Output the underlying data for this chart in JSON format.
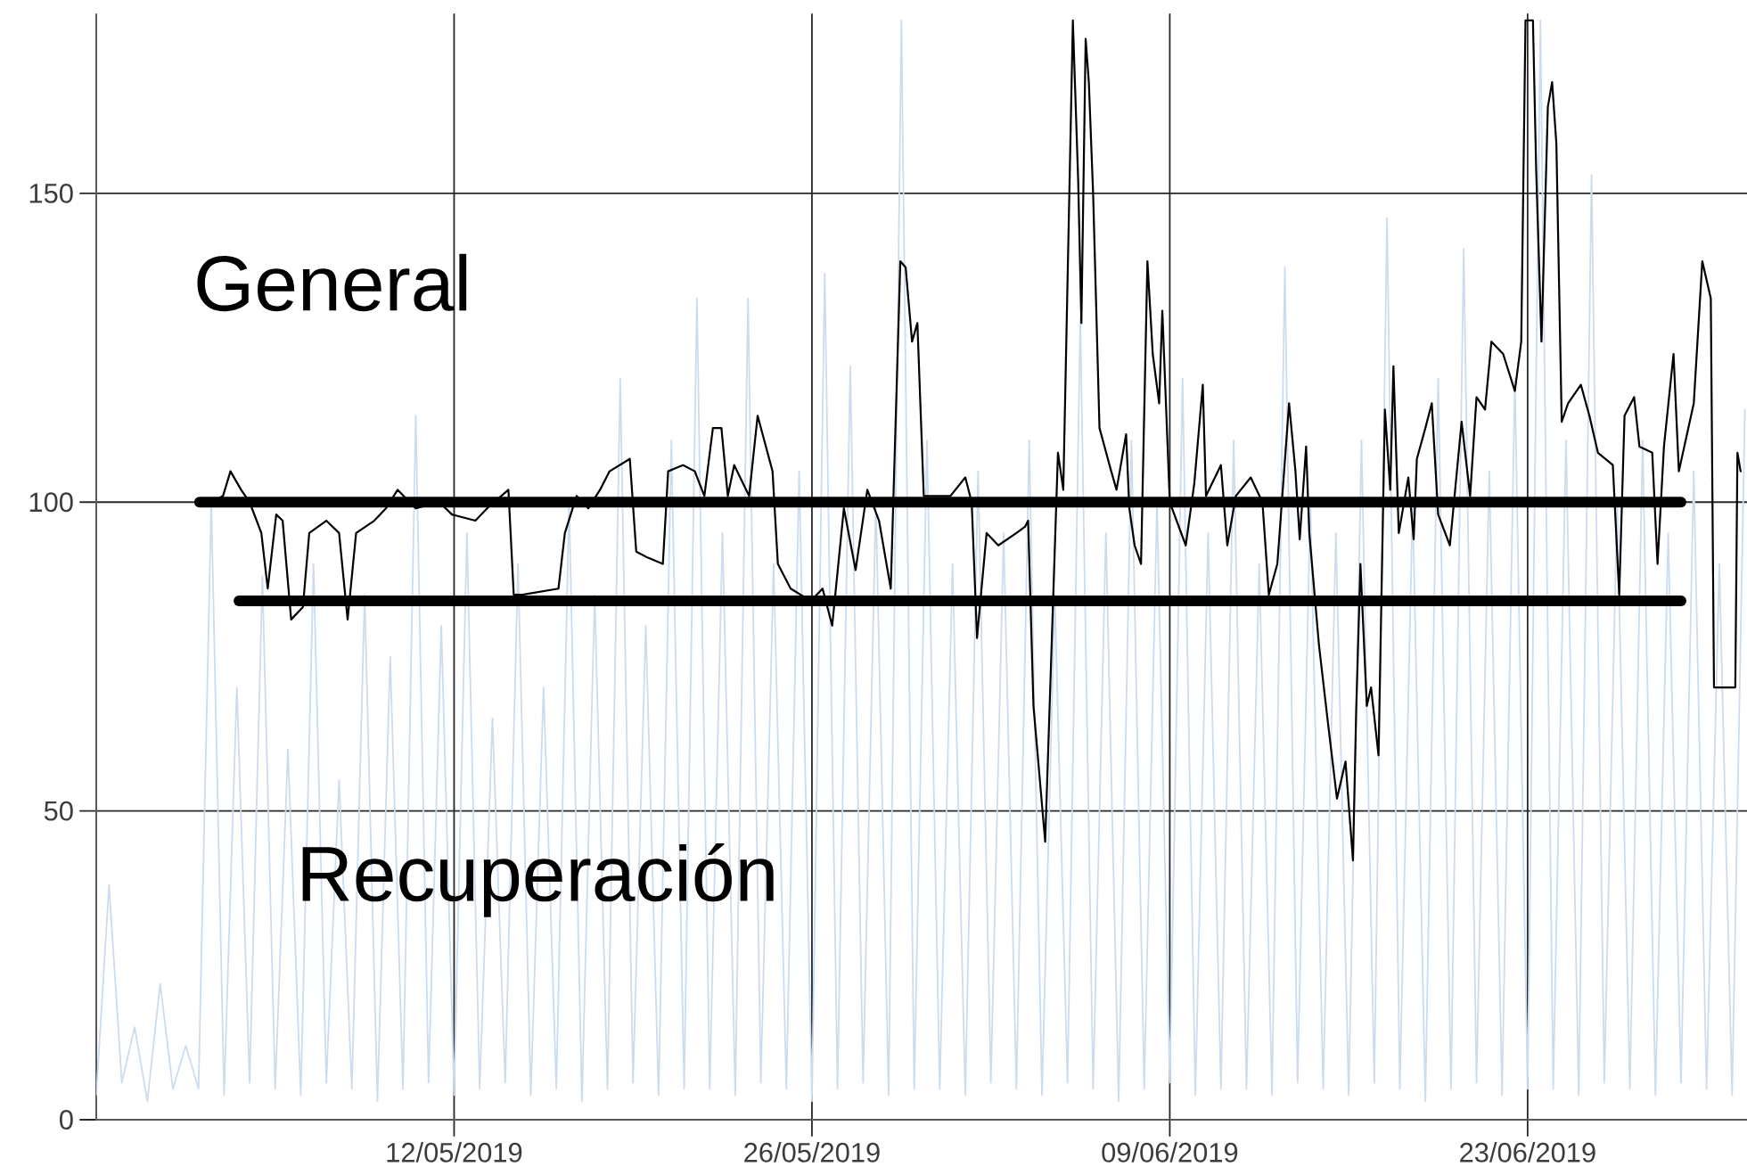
{
  "chart_data": {
    "type": "line",
    "xlim": [
      "2019-04-28T00:00",
      "2019-07-01T14:00"
    ],
    "ylim": [
      0,
      179
    ],
    "xticks": [
      {
        "value": "2019-05-12",
        "label": "12/05/2019"
      },
      {
        "value": "2019-05-26",
        "label": "26/05/2019"
      },
      {
        "value": "2019-06-09",
        "label": "09/06/2019"
      },
      {
        "value": "2019-06-23",
        "label": "23/06/2019"
      }
    ],
    "yticks": [
      0,
      50,
      100,
      150
    ],
    "grid": true,
    "annotations": [
      "General",
      "Recuperación"
    ],
    "series": [
      {
        "color": "#cbdcef",
        "x": [
          "2019-04-28T00:00",
          "2019-04-28T12:00",
          "2019-04-29T00:00",
          "2019-04-29T12:00",
          "2019-04-30T00:00",
          "2019-04-30T12:00",
          "2019-05-01T00:00",
          "2019-05-01T12:00",
          "2019-05-02T00:00",
          "2019-05-02T12:00",
          "2019-05-03T00:00",
          "2019-05-03T12:00",
          "2019-05-04T00:00",
          "2019-05-04T12:00",
          "2019-05-05T00:00",
          "2019-05-05T12:00",
          "2019-05-06T00:00",
          "2019-05-06T12:00",
          "2019-05-07T00:00",
          "2019-05-07T12:00",
          "2019-05-08T00:00",
          "2019-05-08T12:00",
          "2019-05-09T00:00",
          "2019-05-09T12:00",
          "2019-05-10T00:00",
          "2019-05-10T12:00",
          "2019-05-11T00:00",
          "2019-05-11T12:00",
          "2019-05-12T00:00",
          "2019-05-12T12:00",
          "2019-05-13T00:00",
          "2019-05-13T12:00",
          "2019-05-14T00:00",
          "2019-05-14T12:00",
          "2019-05-15T00:00",
          "2019-05-15T12:00",
          "2019-05-16T00:00",
          "2019-05-16T12:00",
          "2019-05-17T00:00",
          "2019-05-17T12:00",
          "2019-05-18T00:00",
          "2019-05-18T12:00",
          "2019-05-19T00:00",
          "2019-05-19T12:00",
          "2019-05-20T00:00",
          "2019-05-20T12:00",
          "2019-05-21T00:00",
          "2019-05-21T12:00",
          "2019-05-22T00:00",
          "2019-05-22T12:00",
          "2019-05-23T00:00",
          "2019-05-23T12:00",
          "2019-05-24T00:00",
          "2019-05-24T12:00",
          "2019-05-25T00:00",
          "2019-05-25T12:00",
          "2019-05-26T00:00",
          "2019-05-26T12:00",
          "2019-05-27T00:00",
          "2019-05-27T12:00",
          "2019-05-28T00:00",
          "2019-05-28T12:00",
          "2019-05-29T00:00",
          "2019-05-29T12:00",
          "2019-05-30T00:00",
          "2019-05-30T12:00",
          "2019-05-31T00:00",
          "2019-05-31T12:00",
          "2019-06-01T00:00",
          "2019-06-01T12:00",
          "2019-06-02T00:00",
          "2019-06-02T12:00",
          "2019-06-03T00:00",
          "2019-06-03T12:00",
          "2019-06-04T00:00",
          "2019-06-04T12:00",
          "2019-06-05T00:00",
          "2019-06-05T12:00",
          "2019-06-06T00:00",
          "2019-06-06T12:00",
          "2019-06-07T00:00",
          "2019-06-07T12:00",
          "2019-06-08T00:00",
          "2019-06-08T12:00",
          "2019-06-09T00:00",
          "2019-06-09T12:00",
          "2019-06-10T00:00",
          "2019-06-10T12:00",
          "2019-06-11T00:00",
          "2019-06-11T12:00",
          "2019-06-12T00:00",
          "2019-06-12T12:00",
          "2019-06-13T00:00",
          "2019-06-13T12:00",
          "2019-06-14T00:00",
          "2019-06-14T12:00",
          "2019-06-15T00:00",
          "2019-06-15T12:00",
          "2019-06-16T00:00",
          "2019-06-16T12:00",
          "2019-06-17T00:00",
          "2019-06-17T12:00",
          "2019-06-18T00:00",
          "2019-06-18T12:00",
          "2019-06-19T00:00",
          "2019-06-19T12:00",
          "2019-06-20T00:00",
          "2019-06-20T12:00",
          "2019-06-21T00:00",
          "2019-06-21T12:00",
          "2019-06-22T00:00",
          "2019-06-22T12:00",
          "2019-06-23T00:00",
          "2019-06-23T12:00",
          "2019-06-24T00:00",
          "2019-06-24T12:00",
          "2019-06-25T00:00",
          "2019-06-25T12:00",
          "2019-06-26T00:00",
          "2019-06-26T12:00",
          "2019-06-27T00:00",
          "2019-06-27T12:00",
          "2019-06-28T00:00",
          "2019-06-28T12:00",
          "2019-06-29T00:00",
          "2019-06-29T12:00",
          "2019-06-30T00:00",
          "2019-06-30T12:00",
          "2019-07-01T00:00",
          "2019-07-01T12:00"
        ],
        "values": [
          4,
          38,
          6,
          15,
          3,
          22,
          5,
          12,
          5,
          100,
          4,
          70,
          6,
          88,
          5,
          60,
          4,
          90,
          6,
          55,
          5,
          85,
          3,
          75,
          5,
          114,
          6,
          80,
          4,
          95,
          5,
          65,
          6,
          90,
          4,
          70,
          5,
          100,
          3,
          85,
          5,
          120,
          6,
          80,
          4,
          110,
          5,
          133,
          5,
          95,
          4,
          133,
          6,
          90,
          5,
          105,
          3,
          137,
          5,
          122,
          6,
          100,
          4,
          178,
          5,
          110,
          5,
          90,
          4,
          105,
          6,
          95,
          5,
          110,
          4,
          85,
          6,
          130,
          5,
          95,
          3,
          110,
          5,
          100,
          6,
          120,
          4,
          95,
          5,
          110,
          5,
          90,
          4,
          138,
          6,
          100,
          5,
          95,
          4,
          110,
          6,
          146,
          5,
          100,
          3,
          120,
          5,
          141,
          6,
          105,
          4,
          120,
          5,
          178,
          5,
          110,
          4,
          153,
          6,
          100,
          5,
          110,
          4,
          95,
          6,
          105,
          5,
          90,
          4,
          115
        ]
      },
      {
        "color": "#000000",
        "x": [
          "2019-05-02T12:00",
          "2019-05-02T23:00",
          "2019-05-03T06:00",
          "2019-05-03T16:00",
          "2019-05-04T00:00",
          "2019-05-04T11:00",
          "2019-05-04T17:00",
          "2019-05-05T01:00",
          "2019-05-05T07:00",
          "2019-05-05T15:00",
          "2019-05-06T02:00",
          "2019-05-06T08:00",
          "2019-05-07T00:00",
          "2019-05-07T12:00",
          "2019-05-07T20:00",
          "2019-05-08T04:00",
          "2019-05-08T21:00",
          "2019-05-09T08:00",
          "2019-05-09T19:00",
          "2019-05-10T12:00",
          "2019-05-11T10:00",
          "2019-05-11T22:00",
          "2019-05-12T20:00",
          "2019-05-13T07:00",
          "2019-05-14T03:00",
          "2019-05-14T08:00",
          "2019-05-14T16:00",
          "2019-05-16T02:00",
          "2019-05-16T08:00",
          "2019-05-16T19:00",
          "2019-05-17T06:00",
          "2019-05-17T17:00",
          "2019-05-18T02:00",
          "2019-05-18T21:00",
          "2019-05-19T03:00",
          "2019-05-19T14:00",
          "2019-05-20T04:00",
          "2019-05-20T09:00",
          "2019-05-20T23:00",
          "2019-05-21T10:00",
          "2019-05-21T19:00",
          "2019-05-22T03:00",
          "2019-05-22T11:00",
          "2019-05-22T17:00",
          "2019-05-22T23:00",
          "2019-05-23T13:00",
          "2019-05-23T21:00",
          "2019-05-24T11:00",
          "2019-05-24T16:00",
          "2019-05-25T04:00",
          "2019-05-25T23:00",
          "2019-05-26T10:00",
          "2019-05-26T19:00",
          "2019-05-27T06:00",
          "2019-05-27T17:00",
          "2019-05-28T04:00",
          "2019-05-28T15:00",
          "2019-05-29T02:00",
          "2019-05-29T11:00",
          "2019-05-29T16:00",
          "2019-05-29T22:00",
          "2019-05-30T03:00",
          "2019-05-30T09:00",
          "2019-05-30T23:00",
          "2019-05-31T10:00",
          "2019-06-01T00:00",
          "2019-06-01T06:00",
          "2019-06-01T11:00",
          "2019-06-01T20:00",
          "2019-06-02T07:00",
          "2019-06-03T00:00",
          "2019-06-03T08:00",
          "2019-06-03T11:00",
          "2019-06-03T16:00",
          "2019-06-04T03:00",
          "2019-06-04T15:00",
          "2019-06-04T20:00",
          "2019-06-05T05:00",
          "2019-06-05T10:00",
          "2019-06-05T13:00",
          "2019-06-05T17:00",
          "2019-06-05T20:00",
          "2019-06-06T00:00",
          "2019-06-06T06:00",
          "2019-06-06T17:00",
          "2019-06-06T22:00",
          "2019-06-07T07:00",
          "2019-06-07T10:00",
          "2019-06-07T15:00",
          "2019-06-07T21:00",
          "2019-06-08T03:00",
          "2019-06-08T08:00",
          "2019-06-08T14:00",
          "2019-06-08T17:00",
          "2019-06-09T00:00",
          "2019-06-09T15:00",
          "2019-06-09T23:00",
          "2019-06-10T07:00",
          "2019-06-10T10:00",
          "2019-06-11T00:00",
          "2019-06-11T06:00",
          "2019-06-11T14:00",
          "2019-06-12T04:00",
          "2019-06-12T15:00",
          "2019-06-12T21:00",
          "2019-06-13T05:00",
          "2019-06-13T16:00",
          "2019-06-13T22:00",
          "2019-06-14T02:00",
          "2019-06-14T08:00",
          "2019-06-14T11:00",
          "2019-06-14T20:00",
          "2019-06-15T04:00",
          "2019-06-15T13:00",
          "2019-06-15T21:00",
          "2019-06-16T04:00",
          "2019-06-16T07:00",
          "2019-06-16T11:00",
          "2019-06-16T17:00",
          "2019-06-16T21:00",
          "2019-06-17T04:00",
          "2019-06-17T10:00",
          "2019-06-17T15:00",
          "2019-06-17T18:00",
          "2019-06-17T23:00",
          "2019-06-18T08:00",
          "2019-06-18T13:00",
          "2019-06-18T16:00",
          "2019-06-19T00:00",
          "2019-06-19T06:00",
          "2019-06-19T12:00",
          "2019-06-19T23:00",
          "2019-06-20T10:00",
          "2019-06-20T18:00",
          "2019-06-21T00:00",
          "2019-06-21T08:00",
          "2019-06-21T14:00",
          "2019-06-22T01:00",
          "2019-06-22T12:00",
          "2019-06-22T18:00",
          "2019-06-22T22:00",
          "2019-06-23T05:00",
          "2019-06-23T08:00",
          "2019-06-23T13:00",
          "2019-06-23T19:00",
          "2019-06-23T23:00",
          "2019-06-24T03:00",
          "2019-06-24T08:00",
          "2019-06-24T14:00",
          "2019-06-25T02:00",
          "2019-06-25T10:00",
          "2019-06-25T18:00",
          "2019-06-26T08:00",
          "2019-06-26T14:00",
          "2019-06-26T19:00",
          "2019-06-27T04:00",
          "2019-06-27T09:00",
          "2019-06-27T21:00",
          "2019-06-28T02:00",
          "2019-06-28T08:00",
          "2019-06-28T17:00",
          "2019-06-28T22:00",
          "2019-06-29T12:00",
          "2019-06-29T20:00",
          "2019-06-30T04:00",
          "2019-06-30T07:00",
          "2019-07-01T03:00",
          "2019-07-01T05:00",
          "2019-07-01T08:00"
        ],
        "values": [
          100,
          101,
          105,
          102,
          100,
          95,
          86,
          98,
          97,
          81,
          83,
          95,
          97,
          95,
          81,
          95,
          97,
          99,
          102,
          99,
          100,
          98,
          97,
          99,
          102,
          85,
          85,
          86,
          95,
          101,
          99,
          102,
          105,
          107,
          92,
          91,
          90,
          105,
          106,
          105,
          101,
          112,
          112,
          101,
          106,
          101,
          114,
          105,
          90,
          86,
          84,
          86,
          80,
          99,
          89,
          102,
          97,
          86,
          139,
          138,
          126,
          129,
          101,
          101,
          101,
          104,
          100,
          78,
          95,
          93,
          95,
          96,
          97,
          67,
          45,
          108,
          102,
          178,
          152,
          129,
          175,
          168,
          150,
          112,
          105,
          102,
          111,
          99,
          93,
          90,
          139,
          124,
          116,
          131,
          100,
          93,
          103,
          119,
          101,
          106,
          93,
          101,
          104,
          100,
          85,
          90,
          116,
          105,
          94,
          109,
          95,
          77,
          65,
          52,
          58,
          42,
          66,
          90,
          67,
          70,
          59,
          115,
          102,
          122,
          95,
          104,
          94,
          107,
          112,
          116,
          98,
          93,
          113,
          101,
          117,
          115,
          126,
          124,
          118,
          126,
          178,
          178,
          154,
          126,
          164,
          168,
          158,
          113,
          116,
          119,
          114,
          108,
          106,
          85,
          114,
          117,
          109,
          108,
          90,
          109,
          124,
          105,
          116,
          139,
          133,
          70,
          70,
          108,
          105
        ]
      },
      {
        "color": "#000000",
        "x": [
          "2019-05-02T01:00",
          "2019-06-29T00:00"
        ],
        "values": [
          100,
          100
        ]
      },
      {
        "color": "#000000",
        "x": [
          "2019-05-03T14:00",
          "2019-06-29T00:00"
        ],
        "values": [
          84,
          84
        ]
      }
    ]
  }
}
